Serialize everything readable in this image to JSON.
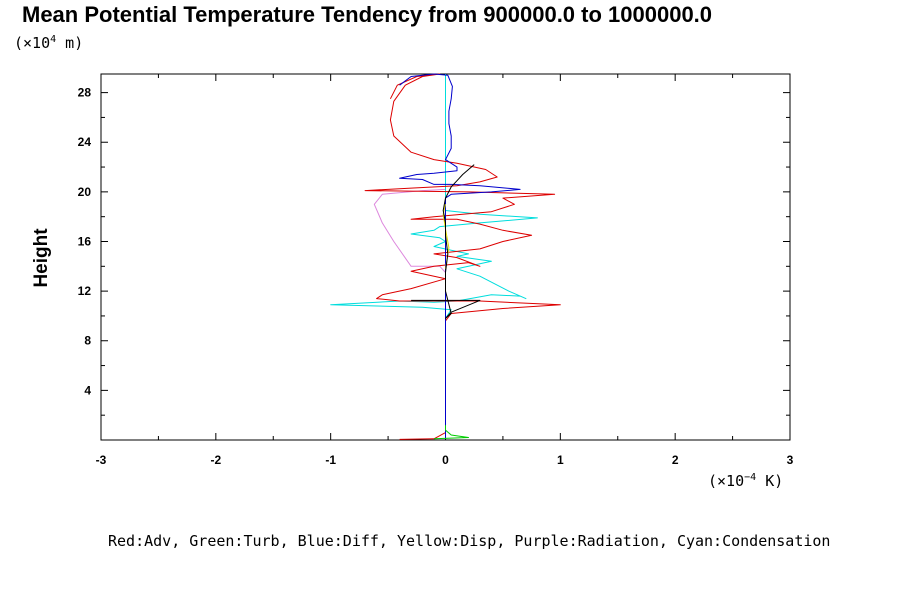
{
  "title": "Mean Potential Temperature Tendency from 900000.0 to 1000000.0",
  "y_unit_label": {
    "prefix": "(×10",
    "exp": "4",
    "suffix": " m)"
  },
  "x_unit_label": {
    "prefix": "(×10",
    "exp": "−4",
    "suffix": " K)"
  },
  "ylabel": "Height",
  "caption": "Red:Adv, Green:Turb, Blue:Diff, Yellow:Disp, Purple:Radiation, Cyan:Condensation",
  "chart_data": {
    "type": "line",
    "title": "Mean Potential Temperature Tendency from 900000.0 to 1000000.0",
    "xlabel": "(×10⁻⁴ K)",
    "ylabel": "Height",
    "xlim": [
      -3,
      3
    ],
    "ylim": [
      0,
      29.5
    ],
    "x_ticks": [
      -3,
      -2,
      -1,
      0,
      1,
      2,
      3
    ],
    "y_ticks": [
      4,
      8,
      12,
      16,
      20,
      24,
      28
    ],
    "grid": false,
    "legend": "caption below plot",
    "series": [
      {
        "name": "Radiation",
        "color": "#dd88dd",
        "points": [
          [
            0,
            0.1
          ],
          [
            0,
            13.5
          ],
          [
            -0.05,
            14
          ],
          [
            -0.3,
            14
          ],
          [
            -0.45,
            16
          ],
          [
            -0.55,
            17.5
          ],
          [
            -0.62,
            19
          ],
          [
            -0.55,
            19.8
          ],
          [
            -0.2,
            20.1
          ],
          [
            0,
            20.2
          ],
          [
            0,
            29.5
          ]
        ]
      },
      {
        "name": "Condensation",
        "color": "#00dddd",
        "points": [
          [
            0,
            0.1
          ],
          [
            0,
            9.8
          ],
          [
            0.05,
            10.5
          ],
          [
            -0.2,
            10.7
          ],
          [
            -1.0,
            10.9
          ],
          [
            -0.4,
            11.2
          ],
          [
            -0.1,
            11.1
          ],
          [
            0.1,
            11.2
          ],
          [
            0.4,
            11.7
          ],
          [
            0.65,
            11.6
          ],
          [
            0.7,
            11.4
          ],
          [
            0.55,
            12
          ],
          [
            0.3,
            13.2
          ],
          [
            0.1,
            13.8
          ],
          [
            0.4,
            14.4
          ],
          [
            0.1,
            14.8
          ],
          [
            0.2,
            15.0
          ],
          [
            0.05,
            15.3
          ],
          [
            -0.1,
            15.6
          ],
          [
            0,
            16
          ],
          [
            -0.05,
            16.3
          ],
          [
            -0.3,
            16.6
          ],
          [
            -0.1,
            16.9
          ],
          [
            -0.05,
            17.2
          ],
          [
            0.3,
            17.5
          ],
          [
            0.8,
            17.9
          ],
          [
            0.3,
            18.2
          ],
          [
            0,
            18.5
          ],
          [
            0,
            29.5
          ]
        ]
      },
      {
        "name": "Adv",
        "color": "#dd0000",
        "points": [
          [
            -0.4,
            0.05
          ],
          [
            -0.1,
            0.1
          ],
          [
            0,
            0.6
          ],
          [
            0,
            9.6
          ],
          [
            0.05,
            10.2
          ],
          [
            0.5,
            10.6
          ],
          [
            1.0,
            10.9
          ],
          [
            0.3,
            11.2
          ],
          [
            -0.4,
            11.2
          ],
          [
            -0.6,
            11.4
          ],
          [
            -0.55,
            11.7
          ],
          [
            -0.3,
            12.2
          ],
          [
            0,
            13.0
          ],
          [
            -0.3,
            13.6
          ],
          [
            -0.1,
            14.0
          ],
          [
            0.2,
            14.3
          ],
          [
            0.3,
            14.0
          ],
          [
            0.1,
            14.7
          ],
          [
            -0.1,
            15.0
          ],
          [
            0.3,
            15.4
          ],
          [
            0.5,
            16.0
          ],
          [
            0.75,
            16.5
          ],
          [
            0.5,
            16.9
          ],
          [
            0.3,
            17.4
          ],
          [
            0.1,
            17.8
          ],
          [
            -0.3,
            17.8
          ],
          [
            -0.1,
            18.0
          ],
          [
            0.4,
            18.4
          ],
          [
            0.6,
            19.0
          ],
          [
            0.5,
            19.5
          ],
          [
            0.95,
            19.8
          ],
          [
            0.2,
            20.0
          ],
          [
            -0.7,
            20.1
          ],
          [
            -0.3,
            20.3
          ],
          [
            0.1,
            20.5
          ],
          [
            0.3,
            20.8
          ],
          [
            0.45,
            21.2
          ],
          [
            0.35,
            21.8
          ],
          [
            0.1,
            22.3
          ],
          [
            -0.1,
            22.6
          ],
          [
            -0.3,
            23.2
          ],
          [
            -0.45,
            24.5
          ],
          [
            -0.48,
            25.8
          ],
          [
            -0.45,
            27.3
          ],
          [
            -0.35,
            28.6
          ],
          [
            -0.2,
            29.3
          ],
          [
            -0.05,
            29.5
          ],
          [
            -0.25,
            29.3
          ],
          [
            -0.42,
            28.6
          ],
          [
            -0.48,
            27.5
          ]
        ]
      },
      {
        "name": "Diff",
        "color": "#0000cc",
        "points": [
          [
            0,
            0.1
          ],
          [
            0,
            19.5
          ],
          [
            0.05,
            19.8
          ],
          [
            0.4,
            20.0
          ],
          [
            0.65,
            20.2
          ],
          [
            0.3,
            20.5
          ],
          [
            0.05,
            20.6
          ],
          [
            -0.1,
            20.6
          ],
          [
            -0.2,
            21.0
          ],
          [
            -0.4,
            21.1
          ],
          [
            -0.25,
            21.4
          ],
          [
            -0.1,
            21.5
          ],
          [
            0.1,
            21.7
          ],
          [
            0.1,
            22.0
          ],
          [
            0.05,
            22.3
          ],
          [
            0,
            22.6
          ],
          [
            0.05,
            23.5
          ],
          [
            0.05,
            24.5
          ],
          [
            0.03,
            25.5
          ],
          [
            0.03,
            26.5
          ],
          [
            0.05,
            27.5
          ],
          [
            0.06,
            28.5
          ],
          [
            0.02,
            29.4
          ],
          [
            -0.1,
            29.5
          ],
          [
            -0.3,
            29.3
          ],
          [
            -0.4,
            28.6
          ]
        ]
      },
      {
        "name": "Turb",
        "color": "#00cc00",
        "points": [
          [
            -0.1,
            0.1
          ],
          [
            0.2,
            0.2
          ],
          [
            0.05,
            0.4
          ],
          [
            0,
            0.8
          ],
          [
            0,
            1.2
          ]
        ]
      },
      {
        "name": "Disp",
        "color": "#dddd00",
        "points": [
          [
            0,
            13.8
          ],
          [
            0.03,
            15.5
          ],
          [
            0,
            17.0
          ],
          [
            -0.02,
            18.2
          ],
          [
            0,
            19.0
          ]
        ]
      },
      {
        "name": "",
        "color": "#000000",
        "points": [
          [
            -0.3,
            11.25
          ],
          [
            0.3,
            11.25
          ],
          [
            0.05,
            10.3
          ],
          [
            0,
            9.8
          ],
          [
            0.05,
            10.2
          ],
          [
            0,
            12.0
          ],
          [
            0,
            13.5
          ],
          [
            0.02,
            15.0
          ],
          [
            0,
            16.5
          ],
          [
            0,
            17.5
          ],
          [
            -0.02,
            18.5
          ],
          [
            0,
            19.5
          ],
          [
            0.05,
            20.4
          ],
          [
            0.1,
            20.9
          ],
          [
            0.15,
            21.4
          ],
          [
            0.2,
            21.8
          ],
          [
            0.25,
            22.2
          ]
        ]
      }
    ]
  }
}
